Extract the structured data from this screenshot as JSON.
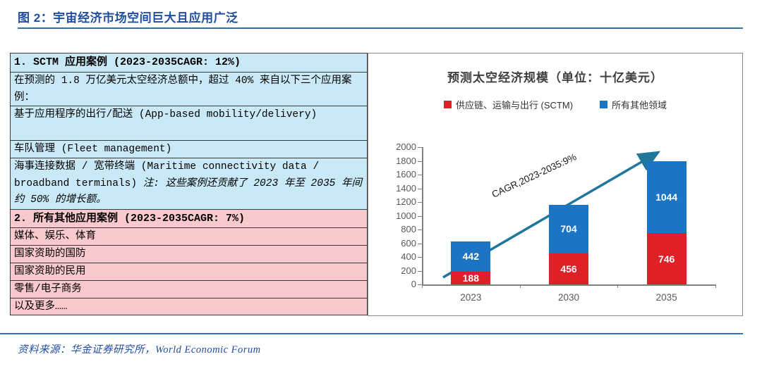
{
  "page": {
    "title": "图 2：宇宙经济市场空间巨大且应用广泛",
    "source": "资料来源：华金证券研究所，World Economic Forum"
  },
  "table": {
    "section1": {
      "header": "1. SCTM 应用案例 (2023-2035CAGR: 12%)",
      "row1": "在预测的 1.8 万亿美元太空经济总额中，超过 40% 来自以下三个应用案例：",
      "row2": "基于应用程序的出行/配送 (App-based mobility/delivery)",
      "row3": "车队管理 (Fleet management)",
      "row4_main": "海事连接数据 / 宽带终端 (Maritime connectivity data / broadband terminals) ",
      "row4_note": "注: 这些案例还贡献了 2023 年至 2035 年间约 50% 的增长额。"
    },
    "section2": {
      "header": "2. 所有其他应用案例 (2023-2035CAGR: 7%)",
      "rows": [
        "媒体、娱乐、体育",
        "国家资助的国防",
        "国家资助的民用",
        "零售/电子商务",
        "以及更多……"
      ]
    }
  },
  "chart_data": {
    "type": "bar",
    "stacked": true,
    "title": "预测太空经济规模（单位：十亿美元）",
    "categories": [
      "2023",
      "2030",
      "2035"
    ],
    "series": [
      {
        "name": "供应链、运输与出行 (SCTM)",
        "color": "#df2127",
        "values": [
          188,
          456,
          746
        ]
      },
      {
        "name": "所有其他领域",
        "color": "#1b75c4",
        "values": [
          442,
          704,
          1044
        ]
      }
    ],
    "totals": [
      630,
      1160,
      1790
    ],
    "ylim": [
      0,
      2000
    ],
    "ytick_step": 200,
    "annotation": "CAGR,2023-2035:9%",
    "annotation_color": "#20769b",
    "legend_position": "top",
    "grid": false
  },
  "colors": {
    "accent_blue": "#1f4e9e",
    "rule_blue": "#2e74b5",
    "table_blue": "#cae9f7",
    "table_pink": "#fac9ce"
  }
}
